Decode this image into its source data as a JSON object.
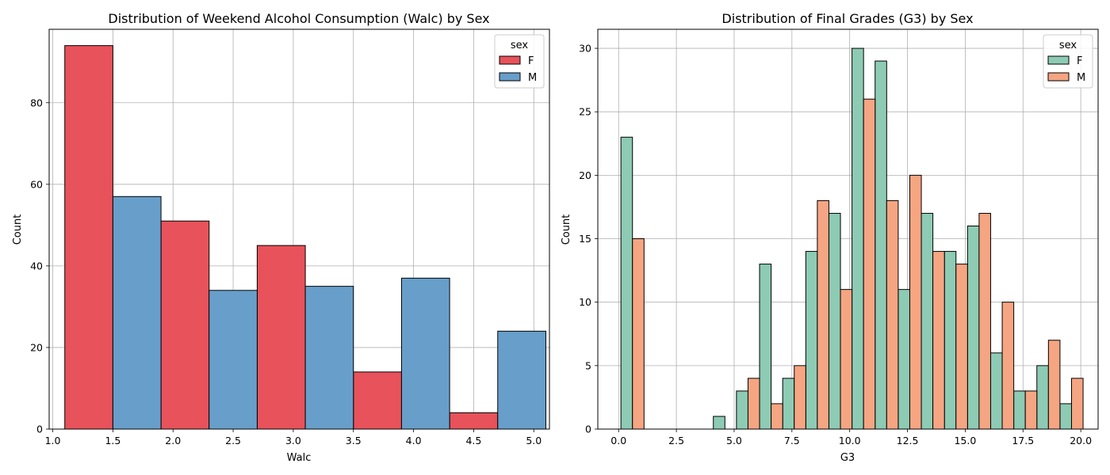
{
  "chart_data": [
    {
      "type": "bar",
      "title": "Distribution of Weekend Alcohol Consumption (Walc) by Sex",
      "xlabel": "Walc",
      "ylabel": "Count",
      "xlim": [
        0.97,
        5.13
      ],
      "ylim": [
        0,
        98
      ],
      "xticks": [
        "1.0",
        "1.5",
        "2.0",
        "2.5",
        "3.0",
        "3.5",
        "4.0",
        "4.5",
        "5.0"
      ],
      "yticks": [
        "0",
        "20",
        "40",
        "60",
        "80"
      ],
      "grid": true,
      "legend": {
        "title": "sex",
        "position": "top-right"
      },
      "bin_edges": [
        1.1,
        1.9,
        2.7,
        3.5,
        4.3,
        5.1
      ],
      "series": [
        {
          "name": "F",
          "color": "#e8525a",
          "values": [
            94,
            51,
            45,
            14,
            4
          ]
        },
        {
          "name": "M",
          "color": "#679fca",
          "values": [
            57,
            34,
            35,
            37,
            24
          ]
        }
      ]
    },
    {
      "type": "bar",
      "title": "Distribution of Final Grades (G3) by Sex",
      "xlabel": "G3",
      "ylabel": "Count",
      "xlim": [
        -0.9,
        20.75
      ],
      "ylim": [
        0,
        31.5
      ],
      "xticks": [
        "0.0",
        "2.5",
        "5.0",
        "7.5",
        "10.0",
        "12.5",
        "15.0",
        "17.5",
        "20.0"
      ],
      "yticks": [
        "0",
        "5",
        "10",
        "15",
        "20",
        "25",
        "30"
      ],
      "grid": true,
      "legend": {
        "title": "sex",
        "position": "top-right"
      },
      "bin_edges": [
        0.1,
        1.1,
        2.1,
        3.1,
        4.1,
        5.1,
        6.1,
        7.1,
        8.1,
        9.1,
        10.1,
        11.1,
        12.1,
        13.1,
        14.1,
        15.1,
        16.1,
        17.1,
        18.1,
        19.1,
        20.1
      ],
      "series": [
        {
          "name": "F",
          "color": "#8dcbb4",
          "values": [
            23,
            0,
            0,
            0,
            1,
            3,
            13,
            4,
            14,
            17,
            30,
            29,
            11,
            17,
            14,
            16,
            6,
            3,
            5,
            2
          ]
        },
        {
          "name": "M",
          "color": "#f6a582",
          "values": [
            15,
            0,
            0,
            0,
            0,
            4,
            2,
            5,
            18,
            11,
            26,
            18,
            20,
            14,
            13,
            17,
            10,
            3,
            7,
            4
          ]
        }
      ]
    }
  ]
}
